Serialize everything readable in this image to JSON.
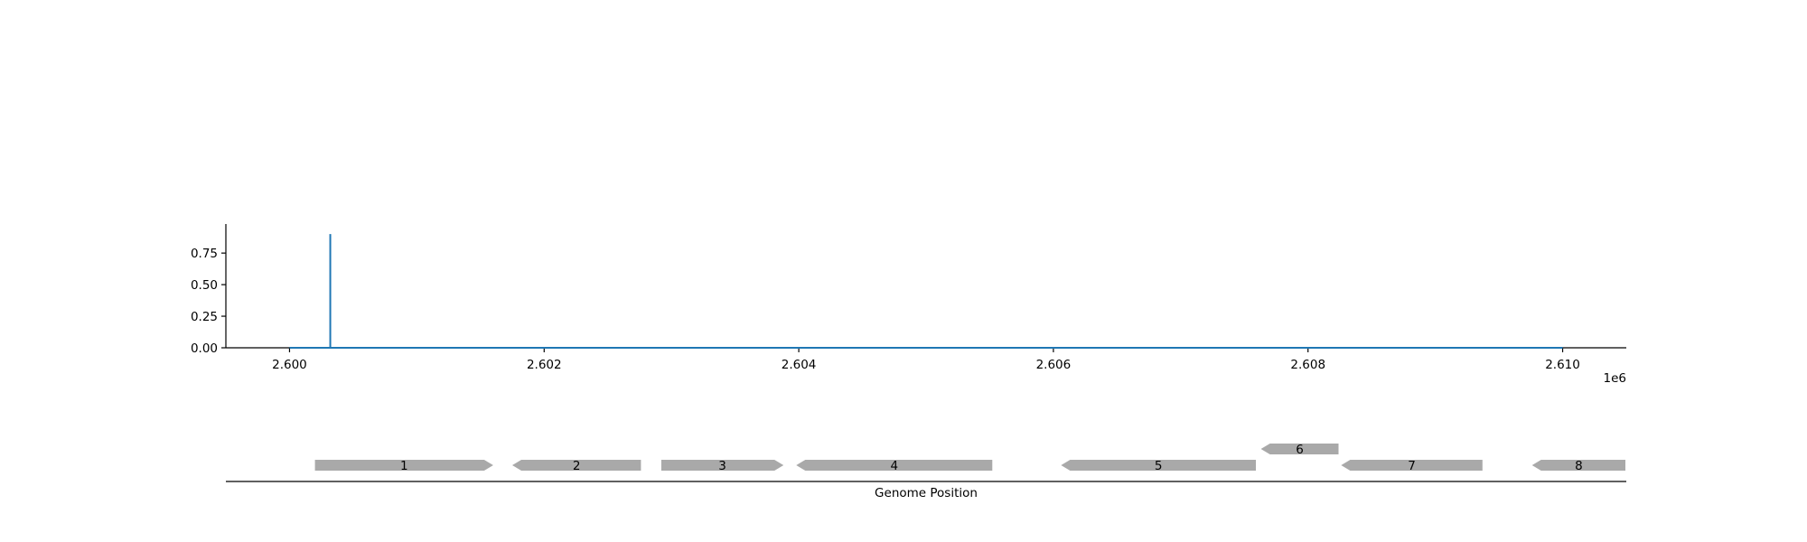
{
  "chart_data": [
    {
      "type": "line",
      "title": "",
      "xlabel": "",
      "ylabel": "",
      "x_offset_label": "1e6",
      "xlim": [
        2599500,
        2610500
      ],
      "ylim": [
        0,
        0.98
      ],
      "x_ticks": [
        2600000,
        2602000,
        2604000,
        2606000,
        2608000,
        2610000
      ],
      "x_tick_labels": [
        "2.600",
        "2.602",
        "2.604",
        "2.606",
        "2.608",
        "2.610"
      ],
      "y_ticks": [
        0,
        0.25,
        0.5,
        0.75
      ],
      "y_tick_labels": [
        "0.00",
        "0.25",
        "0.50",
        "0.75"
      ],
      "grid": false,
      "series": [
        {
          "color": "#1f77b4",
          "x": [
            2600000,
            2600320,
            2600320,
            2600320,
            2600320,
            2610000
          ],
          "y": [
            0,
            0,
            0.9,
            0.9,
            0,
            0
          ]
        }
      ]
    },
    {
      "type": "gene-track",
      "xlabel": "Genome Position",
      "gene_color": "#a9a9a9",
      "genes": [
        {
          "label": "1",
          "start": 2600200,
          "end": 2601600,
          "strand": "+",
          "row": 0
        },
        {
          "label": "2",
          "start": 2601750,
          "end": 2602760,
          "strand": "-",
          "row": 0
        },
        {
          "label": "3",
          "start": 2602920,
          "end": 2603880,
          "strand": "+",
          "row": 0
        },
        {
          "label": "4",
          "start": 2603980,
          "end": 2605520,
          "strand": "-",
          "row": 0
        },
        {
          "label": "5",
          "start": 2606060,
          "end": 2607590,
          "strand": "-",
          "row": 0
        },
        {
          "label": "6",
          "start": 2607630,
          "end": 2608240,
          "strand": "-",
          "row": 1
        },
        {
          "label": "7",
          "start": 2608260,
          "end": 2609370,
          "strand": "-",
          "row": 0
        },
        {
          "label": "8",
          "start": 2609760,
          "end": 2610500,
          "strand": "-",
          "row": 0
        }
      ]
    }
  ]
}
